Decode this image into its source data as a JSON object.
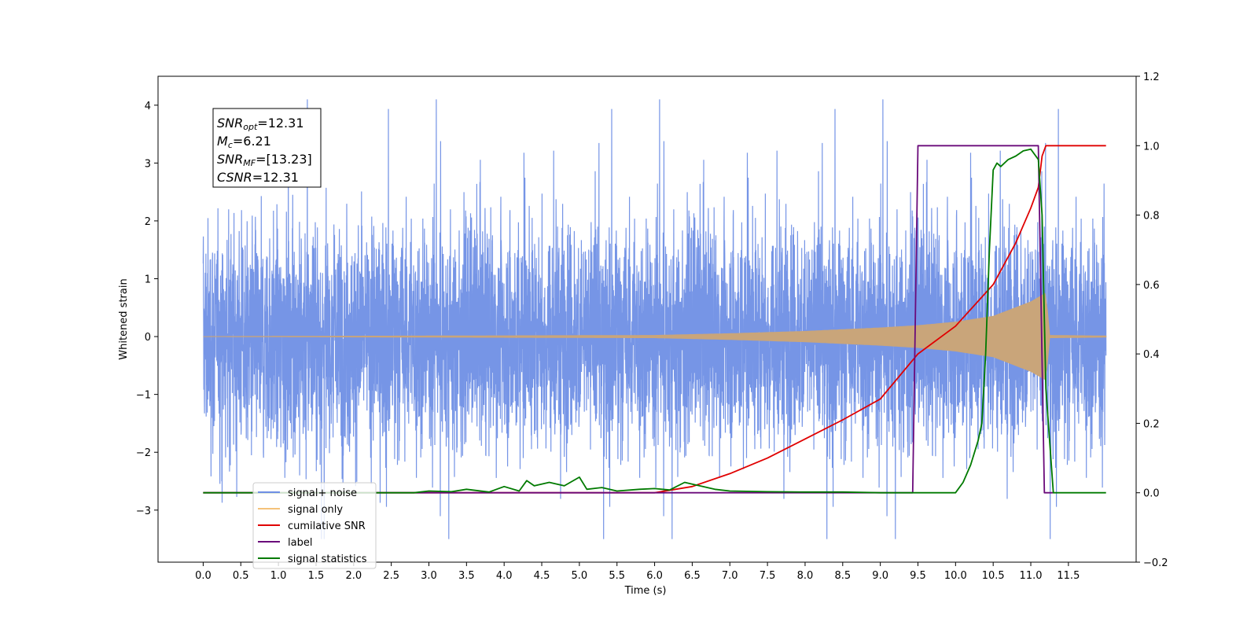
{
  "chart_data": {
    "type": "line",
    "title": "",
    "xlabel": "Time (s)",
    "ylabel": "Whitened strain",
    "xlim": [
      -0.6,
      12.4
    ],
    "ylim": [
      -3.9,
      4.5
    ],
    "y2lim": [
      -0.2,
      1.2
    ],
    "x_ticks": [
      "0.0",
      "0.5",
      "1.0",
      "1.5",
      "2.0",
      "2.5",
      "3.0",
      "3.5",
      "4.0",
      "4.5",
      "5.0",
      "5.5",
      "6.0",
      "6.5",
      "7.0",
      "7.5",
      "8.0",
      "8.5",
      "9.0",
      "9.5",
      "10.0",
      "10.5",
      "11.0",
      "11.5"
    ],
    "y_ticks": [
      "4",
      "3",
      "2",
      "1",
      "0",
      "−1",
      "−2",
      "−3"
    ],
    "y2_ticks": [
      "1.2",
      "1.0",
      "0.8",
      "0.6",
      "0.4",
      "0.2",
      "0.0",
      "−0.2"
    ],
    "grid": false,
    "legend_position": "lower-left",
    "annotation": {
      "lines": [
        {
          "sym": "SNR",
          "sub": "opt",
          "val": "=12.31"
        },
        {
          "sym": "M",
          "sub": "c",
          "val": "=6.21"
        },
        {
          "sym": "SNR",
          "sub": "MF",
          "val": "=[13.23]"
        },
        {
          "sym": "CSNR",
          "sub": "",
          "val": "=12.31"
        }
      ]
    },
    "legend": [
      {
        "label": "signal+ noise",
        "color": "#6f8fe5"
      },
      {
        "label": "signal only",
        "color": "#f5c27a"
      },
      {
        "label": "cumilative SNR",
        "color": "#e00000"
      },
      {
        "label": "label",
        "color": "#6a0a7a"
      },
      {
        "label": "signal statistics",
        "color": "#007a00"
      }
    ],
    "series": [
      {
        "name": "signal+ noise",
        "axis": "left",
        "color": "#6f8fe5",
        "x_range": [
          0.0,
          12.0
        ],
        "noise_envelope": [
          -2.3,
          2.6
        ],
        "max": 4.1,
        "min": -3.5
      },
      {
        "name": "signal only",
        "axis": "left",
        "color": "#c9a57a",
        "x_range": [
          0.0,
          12.0
        ],
        "envelope_x": [
          0.0,
          6.0,
          7.0,
          8.0,
          9.0,
          9.5,
          10.0,
          10.5,
          11.0,
          11.2,
          11.25,
          12.0
        ],
        "envelope_amp": [
          0.0,
          0.02,
          0.05,
          0.09,
          0.15,
          0.19,
          0.25,
          0.35,
          0.6,
          0.75,
          0.02,
          0.01
        ]
      },
      {
        "name": "cumilative SNR",
        "axis": "right",
        "color": "#e00000",
        "x": [
          0.0,
          6.0,
          6.5,
          7.0,
          7.5,
          8.0,
          8.5,
          9.0,
          9.5,
          10.0,
          10.5,
          10.8,
          11.0,
          11.1,
          11.15,
          11.2,
          12.0
        ],
        "values": [
          0.0,
          0.0,
          0.018,
          0.055,
          0.1,
          0.155,
          0.21,
          0.27,
          0.4,
          0.48,
          0.6,
          0.72,
          0.82,
          0.88,
          0.97,
          1.0,
          1.0
        ]
      },
      {
        "name": "label",
        "axis": "right",
        "color": "#6a0a7a",
        "x": [
          0.0,
          9.43,
          9.5,
          11.1,
          11.18,
          11.3
        ],
        "values": [
          0.0,
          0.0,
          1.0,
          1.0,
          0.0,
          0.0
        ]
      },
      {
        "name": "signal statistics",
        "axis": "right",
        "color": "#007a00",
        "x": [
          0.0,
          2.8,
          3.0,
          3.3,
          3.5,
          3.8,
          4.0,
          4.2,
          4.3,
          4.4,
          4.6,
          4.8,
          5.0,
          5.1,
          5.3,
          5.5,
          5.8,
          6.0,
          6.2,
          6.4,
          6.5,
          6.6,
          6.8,
          7.0,
          7.5,
          8.0,
          8.5,
          9.0,
          9.5,
          10.0,
          10.1,
          10.2,
          10.3,
          10.35,
          10.4,
          10.45,
          10.5,
          10.55,
          10.6,
          10.7,
          10.8,
          10.9,
          11.0,
          11.1,
          11.15,
          11.2,
          11.3,
          11.5,
          12.0
        ],
        "values": [
          0.0,
          0.0,
          0.005,
          0.003,
          0.01,
          0.002,
          0.018,
          0.005,
          0.035,
          0.02,
          0.03,
          0.02,
          0.045,
          0.01,
          0.015,
          0.005,
          0.01,
          0.012,
          0.008,
          0.03,
          0.025,
          0.02,
          0.01,
          0.005,
          0.003,
          0.002,
          0.002,
          0.0,
          0.0,
          0.0,
          0.03,
          0.08,
          0.15,
          0.2,
          0.4,
          0.7,
          0.93,
          0.95,
          0.94,
          0.96,
          0.97,
          0.985,
          0.99,
          0.96,
          0.8,
          0.3,
          0.0,
          0.0,
          0.0
        ]
      }
    ]
  }
}
